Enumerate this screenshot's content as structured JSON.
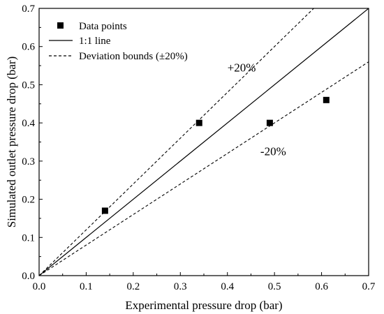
{
  "chart_data": {
    "type": "scatter",
    "title": "",
    "xlabel": "Experimental pressure drop (bar)",
    "ylabel": "Simulated outlet pressure drop (bar)",
    "xlim": [
      0.0,
      0.7
    ],
    "ylim": [
      0.0,
      0.7
    ],
    "xticks": [
      "0.0",
      "0.1",
      "0.2",
      "0.3",
      "0.4",
      "0.5",
      "0.6",
      "0.7"
    ],
    "yticks": [
      "0.0",
      "0.1",
      "0.2",
      "0.3",
      "0.4",
      "0.5",
      "0.6",
      "0.7"
    ],
    "grid": false,
    "legend_position": "top-left",
    "series": [
      {
        "name": "Data points",
        "kind": "scatter",
        "marker": "square",
        "color": "#000000",
        "points": [
          [
            0.14,
            0.17
          ],
          [
            0.34,
            0.4
          ],
          [
            0.49,
            0.4
          ],
          [
            0.61,
            0.46
          ]
        ]
      },
      {
        "name": "1:1 line",
        "kind": "line",
        "style": "solid",
        "color": "#000000",
        "slope": 1.0
      },
      {
        "name": "Deviation bounds (±20%)",
        "kind": "line",
        "style": "dashed",
        "color": "#000000",
        "slopes": [
          1.2,
          0.8
        ]
      }
    ],
    "annotations": [
      {
        "text": "+20%",
        "x": 0.4,
        "y": 0.535
      },
      {
        "text": "-20%",
        "x": 0.47,
        "y": 0.315
      }
    ]
  }
}
